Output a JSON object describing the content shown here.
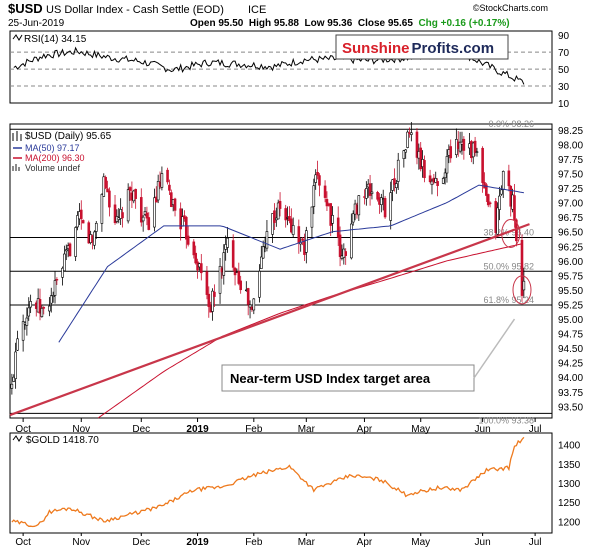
{
  "header": {
    "symbol": "$USD",
    "description": "US Dollar Index - Cash Settle (EOD)",
    "exchange": "ICE",
    "date": "25-Jun-2019",
    "ohlc": "Open 95.50  High 95.88  Low 95.36  Close 95.65  Chg +0.16 (+0.17%)",
    "ohlc_color": "#000000",
    "chg_color": "#1a9a1a",
    "watermark": "©StockCharts.com"
  },
  "logo": {
    "part1": "Sunshine",
    "part2": "Profits.com",
    "part1_color": "#d8202a",
    "part2_color": "#1e2a5a"
  },
  "annotation": {
    "text": "Near-term USD Index target area"
  },
  "colors": {
    "up": "#000000",
    "down": "#c8102e",
    "ma50": "#2a3a9a",
    "ma200": "#c8102e",
    "trendline": "#c8364a",
    "gold": "#ee7a1e",
    "rsi": "#000000"
  },
  "chart_data": [
    {
      "type": "line",
      "panel": "rsi",
      "legend": "RSI(14) 34.15",
      "y_ticks": [
        10,
        30,
        50,
        70,
        90
      ],
      "ylim": [
        10,
        95
      ],
      "reference_lines": [
        30,
        50,
        70
      ],
      "x_dates": [
        "2018-09-26",
        "2018-10-12",
        "2018-10-30",
        "2018-11-15",
        "2018-12-03",
        "2018-12-20",
        "2019-01-08",
        "2019-01-25",
        "2019-02-12",
        "2019-02-28",
        "2019-03-18",
        "2019-04-03",
        "2019-04-22",
        "2019-05-08",
        "2019-05-24",
        "2019-06-12",
        "2019-06-25"
      ],
      "values": [
        52,
        66,
        71,
        64,
        59,
        49,
        58,
        56,
        53,
        61,
        62,
        60,
        63,
        66,
        68,
        47,
        34
      ]
    },
    {
      "type": "candlestick",
      "panel": "usd",
      "legend": [
        "$USD (Daily) 95.65",
        "MA(50) 97.17",
        "MA(200) 96.30",
        "Volume undef"
      ],
      "ylim": [
        93.3,
        98.35
      ],
      "y_ticks": [
        93.5,
        93.75,
        94.0,
        94.25,
        94.5,
        94.75,
        95.0,
        95.25,
        95.5,
        95.75,
        96.0,
        96.25,
        96.5,
        96.75,
        97.0,
        97.25,
        97.5,
        97.75,
        98.0,
        98.25
      ],
      "x_ticks": [
        "Oct",
        "Nov",
        "Dec",
        "2019",
        "Feb",
        "Mar",
        "Apr",
        "May",
        "Jun",
        "Jul"
      ],
      "x_tick_dates": [
        "2018-10-01",
        "2018-11-01",
        "2018-12-03",
        "2019-01-02",
        "2019-02-01",
        "2019-03-01",
        "2019-04-01",
        "2019-05-01",
        "2019-06-03",
        "2019-07-01"
      ],
      "x_range": [
        "2018-09-24",
        "2019-07-10"
      ],
      "fib_levels": [
        {
          "label": "0.0% 98.26",
          "value": 98.26
        },
        {
          "label": "38.2% 96.40",
          "value": 96.4
        },
        {
          "label": "50.0% 95.82",
          "value": 95.82
        },
        {
          "label": "61.8% 95.24",
          "value": 95.24
        },
        {
          "label": "100.0% 93.38",
          "value": 93.38
        }
      ],
      "close_anchors": [
        [
          "2018-09-25",
          93.8
        ],
        [
          "2018-09-28",
          94.8
        ],
        [
          "2018-10-05",
          95.3
        ],
        [
          "2018-10-12",
          95.1
        ],
        [
          "2018-10-19",
          95.6
        ],
        [
          "2018-10-31",
          96.7
        ],
        [
          "2018-11-07",
          96.3
        ],
        [
          "2018-11-13",
          97.4
        ],
        [
          "2018-11-20",
          96.6
        ],
        [
          "2018-11-28",
          97.2
        ],
        [
          "2018-12-06",
          96.6
        ],
        [
          "2018-12-14",
          97.4
        ],
        [
          "2018-12-21",
          96.9
        ],
        [
          "2018-12-31",
          96.2
        ],
        [
          "2019-01-09",
          95.2
        ],
        [
          "2019-01-18",
          96.3
        ],
        [
          "2019-01-31",
          95.1
        ],
        [
          "2019-02-08",
          96.6
        ],
        [
          "2019-02-15",
          96.9
        ],
        [
          "2019-02-28",
          96.2
        ],
        [
          "2019-03-07",
          97.5
        ],
        [
          "2019-03-13",
          96.9
        ],
        [
          "2019-03-20",
          96.0
        ],
        [
          "2019-03-29",
          97.1
        ],
        [
          "2019-04-05",
          97.2
        ],
        [
          "2019-04-12",
          96.9
        ],
        [
          "2019-04-25",
          98.2
        ],
        [
          "2019-05-03",
          97.5
        ],
        [
          "2019-05-10",
          97.3
        ],
        [
          "2019-05-17",
          97.9
        ],
        [
          "2019-05-23",
          98.1
        ],
        [
          "2019-05-31",
          97.8
        ],
        [
          "2019-06-05",
          97.0
        ],
        [
          "2019-06-10",
          96.6
        ],
        [
          "2019-06-14",
          97.5
        ],
        [
          "2019-06-19",
          97.0
        ],
        [
          "2019-06-21",
          96.2
        ],
        [
          "2019-06-24",
          95.5
        ],
        [
          "2019-06-25",
          95.65
        ]
      ],
      "ma50_anchors": [
        [
          "2018-10-20",
          94.6
        ],
        [
          "2018-11-15",
          95.9
        ],
        [
          "2018-12-15",
          96.6
        ],
        [
          "2019-01-15",
          96.6
        ],
        [
          "2019-02-15",
          96.2
        ],
        [
          "2019-03-15",
          96.5
        ],
        [
          "2019-04-15",
          96.6
        ],
        [
          "2019-05-15",
          97.0
        ],
        [
          "2019-06-01",
          97.3
        ],
        [
          "2019-06-25",
          97.17
        ]
      ],
      "ma200_anchors": [
        [
          "2018-11-10",
          93.3
        ],
        [
          "2018-12-15",
          94.1
        ],
        [
          "2019-01-15",
          94.7
        ],
        [
          "2019-02-15",
          95.1
        ],
        [
          "2019-03-15",
          95.4
        ],
        [
          "2019-04-15",
          95.7
        ],
        [
          "2019-05-15",
          96.0
        ],
        [
          "2019-06-25",
          96.3
        ]
      ],
      "trendline": [
        [
          "2018-09-24",
          93.35
        ],
        [
          "2019-06-28",
          96.63
        ]
      ],
      "target_circles": [
        {
          "date": "2019-06-18",
          "value": 96.47
        },
        {
          "date": "2019-06-24",
          "value": 95.5
        }
      ],
      "annotation_arrow_target": {
        "date": "2019-06-20",
        "value": 95.0
      }
    },
    {
      "type": "line",
      "panel": "gold",
      "legend": "$GOLD 1418.70",
      "ylim": [
        1170,
        1430
      ],
      "y_ticks": [
        1200,
        1250,
        1300,
        1350,
        1400
      ],
      "x_ticks": [
        "Oct",
        "Nov",
        "Dec",
        "2019",
        "Feb",
        "Mar",
        "Apr",
        "May",
        "Jun",
        "Jul"
      ],
      "x_tick_dates": [
        "2018-10-01",
        "2018-11-01",
        "2018-12-03",
        "2019-01-02",
        "2019-02-01",
        "2019-03-01",
        "2019-04-01",
        "2019-05-01",
        "2019-06-03",
        "2019-07-01"
      ],
      "x_range": [
        "2018-09-24",
        "2019-07-10"
      ],
      "anchors": [
        [
          "2018-09-25",
          1200
        ],
        [
          "2018-10-09",
          1188
        ],
        [
          "2018-10-15",
          1225
        ],
        [
          "2018-10-26",
          1235
        ],
        [
          "2018-11-13",
          1201
        ],
        [
          "2018-11-30",
          1222
        ],
        [
          "2018-12-14",
          1240
        ],
        [
          "2018-12-31",
          1282
        ],
        [
          "2019-01-15",
          1290
        ],
        [
          "2019-02-01",
          1320
        ],
        [
          "2019-02-20",
          1343
        ],
        [
          "2019-03-05",
          1283
        ],
        [
          "2019-03-25",
          1320
        ],
        [
          "2019-04-10",
          1308
        ],
        [
          "2019-04-23",
          1270
        ],
        [
          "2019-05-10",
          1287
        ],
        [
          "2019-05-23",
          1283
        ],
        [
          "2019-06-05",
          1333
        ],
        [
          "2019-06-17",
          1340
        ],
        [
          "2019-06-20",
          1395
        ],
        [
          "2019-06-25",
          1418.7
        ]
      ]
    }
  ]
}
